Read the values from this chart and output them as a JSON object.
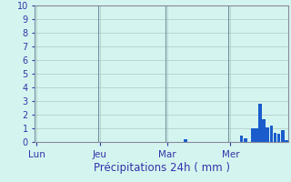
{
  "xlabel": "Précipitations 24h ( mm )",
  "background_color": "#d4f5ef",
  "bar_color": "#1a5ccc",
  "ylim": [
    0,
    10
  ],
  "yticks": [
    0,
    1,
    2,
    3,
    4,
    5,
    6,
    7,
    8,
    9,
    10
  ],
  "day_labels": [
    "Lun",
    "Jeu",
    "Mar",
    "Mer"
  ],
  "grid_color": "#b0c8c4",
  "sep_color": "#7090a0",
  "tick_label_color": "#3333aa",
  "xlabel_color": "#3333aa",
  "xlabel_fontsize": 8.5,
  "ytick_fontsize": 7,
  "xtick_fontsize": 7.5,
  "bar_values": [
    0,
    0,
    0,
    0,
    0,
    0,
    0,
    0,
    0,
    0,
    0,
    0,
    0,
    0,
    0,
    0,
    0,
    0,
    0,
    0,
    0,
    0,
    0,
    0,
    0,
    0,
    0,
    0,
    0,
    0,
    0,
    0,
    0,
    0,
    0,
    0,
    0,
    0,
    0,
    0,
    0.2,
    0,
    0,
    0,
    0,
    0,
    0,
    0,
    0,
    0,
    0,
    0,
    0,
    0,
    0,
    0.5,
    0.3,
    0,
    1.0,
    1.0,
    2.8,
    1.7,
    1.1,
    1.2,
    0.7,
    0.6,
    0.9,
    0.15
  ],
  "n_bars": 68,
  "day_tick_bar_indices": [
    0,
    17,
    35,
    52
  ]
}
